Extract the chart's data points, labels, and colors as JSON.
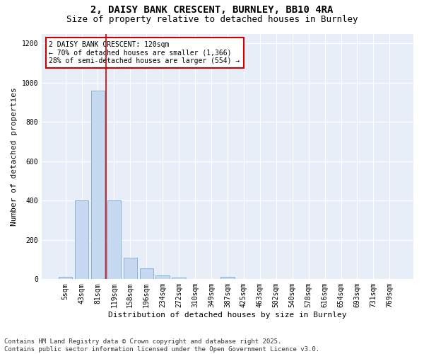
{
  "title1": "2, DAISY BANK CRESCENT, BURNLEY, BB10 4RA",
  "title2": "Size of property relative to detached houses in Burnley",
  "xlabel": "Distribution of detached houses by size in Burnley",
  "ylabel": "Number of detached properties",
  "categories": [
    "5sqm",
    "43sqm",
    "81sqm",
    "119sqm",
    "158sqm",
    "196sqm",
    "234sqm",
    "272sqm",
    "310sqm",
    "349sqm",
    "387sqm",
    "425sqm",
    "463sqm",
    "502sqm",
    "540sqm",
    "578sqm",
    "616sqm",
    "654sqm",
    "693sqm",
    "731sqm",
    "769sqm"
  ],
  "values": [
    12,
    400,
    960,
    400,
    110,
    55,
    20,
    10,
    0,
    0,
    12,
    0,
    0,
    0,
    0,
    0,
    0,
    0,
    0,
    0,
    0
  ],
  "bar_color": "#c6d9f0",
  "bar_edge_color": "#7aadd4",
  "vline_color": "#cc0000",
  "vline_index": 2.5,
  "annotation_text": "2 DAISY BANK CRESCENT: 120sqm\n← 70% of detached houses are smaller (1,366)\n28% of semi-detached houses are larger (554) →",
  "annotation_box_facecolor": "#ffffff",
  "annotation_box_edgecolor": "#cc0000",
  "ylim": [
    0,
    1250
  ],
  "yticks": [
    0,
    200,
    400,
    600,
    800,
    1000,
    1200
  ],
  "footer1": "Contains HM Land Registry data © Crown copyright and database right 2025.",
  "footer2": "Contains public sector information licensed under the Open Government Licence v3.0.",
  "plot_bg_color": "#e8eef8",
  "fig_bg_color": "#ffffff",
  "grid_color": "#ffffff",
  "title1_fontsize": 10,
  "title2_fontsize": 9,
  "xlabel_fontsize": 8,
  "ylabel_fontsize": 8,
  "tick_fontsize": 7,
  "annot_fontsize": 7,
  "footer_fontsize": 6.5
}
